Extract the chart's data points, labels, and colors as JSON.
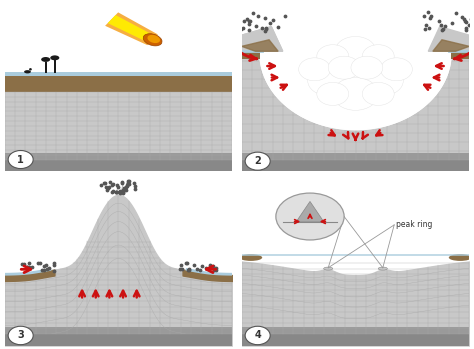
{
  "fig_width": 4.74,
  "fig_height": 3.49,
  "dpi": 100,
  "bg_color": "#ffffff",
  "rock_light": "#c8c8c8",
  "rock_mid": "#aaaaaa",
  "rock_dark": "#888888",
  "rock_darker": "#666666",
  "soil_color": "#8b6f47",
  "red_color": "#cc1111",
  "panel_labels": [
    "1",
    "2",
    "3",
    "4"
  ],
  "peak_ring_label": "peak ring",
  "blue_surface": "#aaccdd",
  "dot_color": "#555555",
  "grid_color": "#999999"
}
